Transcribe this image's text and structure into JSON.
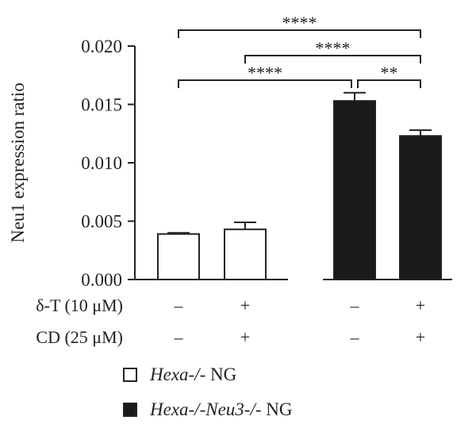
{
  "chart_data": {
    "type": "bar",
    "ylabel": "Neu1 expression ratio",
    "ylim": [
      0,
      0.02
    ],
    "yticks": [
      "0.000",
      "0.005",
      "0.010",
      "0.015",
      "0.020"
    ],
    "ytick_values": [
      0,
      0.005,
      0.01,
      0.015,
      0.02
    ],
    "groups": [
      {
        "name_italic": "Hexa-/-",
        "name_rest": " NG",
        "color": "#ffffff",
        "bars": [
          {
            "value": 0.0039,
            "error": 0.0001,
            "dT": "–",
            "CD": "–"
          },
          {
            "value": 0.0043,
            "error": 0.0006,
            "dT": "+",
            "CD": "+"
          }
        ]
      },
      {
        "name_italic": "Hexa-/-Neu3-/-",
        "name_rest": " NG",
        "color": "#1a1a1a",
        "bars": [
          {
            "value": 0.0153,
            "error": 0.0007,
            "dT": "–",
            "CD": "–"
          },
          {
            "value": 0.0123,
            "error": 0.0005,
            "dT": "+",
            "CD": "+"
          }
        ]
      }
    ],
    "treatments": [
      {
        "label": "δ-T (10 μM)",
        "key": "dT"
      },
      {
        "label": "CD (25 μM)",
        "key": "CD"
      }
    ],
    "significance": [
      {
        "from": 0,
        "to": 3,
        "label": "****"
      },
      {
        "from": 1,
        "to": 3,
        "label": "****"
      },
      {
        "from": 0,
        "to": 2,
        "label": "****"
      },
      {
        "from": 2,
        "to": 3,
        "label": "**"
      }
    ]
  }
}
